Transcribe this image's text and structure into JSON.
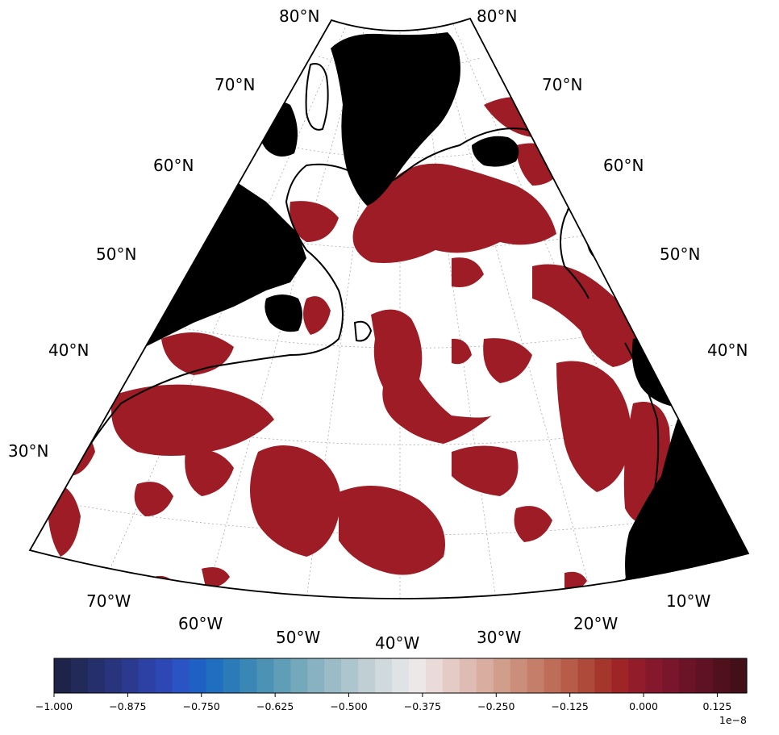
{
  "map": {
    "projection": "conic",
    "region": "North Atlantic",
    "lat_labels_left": [
      "80°N",
      "70°N",
      "60°N",
      "50°N",
      "40°N",
      "30°N"
    ],
    "lat_labels_right": [
      "80°N",
      "70°N",
      "60°N",
      "50°N",
      "40°N"
    ],
    "lon_labels": [
      "70°W",
      "60°W",
      "50°W",
      "40°W",
      "30°W",
      "20°W",
      "10°W"
    ],
    "colors": {
      "land": "#000000",
      "ocean": "#ffffff",
      "anomaly_fill": "#9e1c25",
      "contour": "#000000",
      "gridline": "#aaaaaa"
    },
    "gridlines": true
  },
  "colorbar": {
    "tick_labels": [
      "−1.000",
      "−0.875",
      "−0.750",
      "−0.625",
      "−0.500",
      "−0.375",
      "−0.250",
      "−0.125",
      "0.000",
      "0.125"
    ],
    "tick_values": [
      -1.0,
      -0.875,
      -0.75,
      -0.625,
      -0.5,
      -0.375,
      -0.25,
      -0.125,
      0.0,
      0.125
    ],
    "vmin": -1.0,
    "vmax": 0.175,
    "exponent_label": "1e−8",
    "colormap": [
      "#1e2349",
      "#222a5a",
      "#252f6b",
      "#28347c",
      "#2b3a8f",
      "#2d40a3",
      "#2d48b5",
      "#2a54c4",
      "#1f60c4",
      "#1f6ebf",
      "#2a7bb8",
      "#3a87b5",
      "#4c92b5",
      "#609db7",
      "#74a8bb",
      "#88b2c1",
      "#9bbcc7",
      "#adc5cd",
      "#bfcfd4",
      "#d0d9dc",
      "#e0e3e5",
      "#ede8e8",
      "#eadad8",
      "#e5cbc6",
      "#dfbcb3",
      "#d9ad9f",
      "#d29e8c",
      "#cb8e7a",
      "#c47e69",
      "#bd6d58",
      "#b65c48",
      "#ae4a39",
      "#a5362c",
      "#9e2426",
      "#931c2a",
      "#86182d",
      "#79162c",
      "#6b1428",
      "#5e1223",
      "#50111d",
      "#43101a"
    ]
  }
}
